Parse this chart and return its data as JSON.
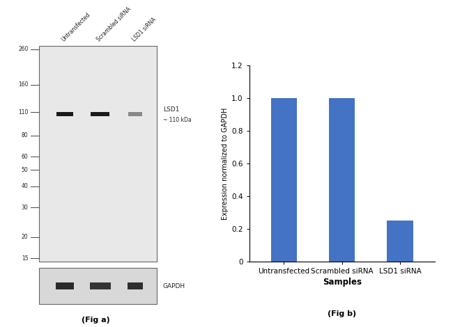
{
  "fig_width": 6.5,
  "fig_height": 4.7,
  "background_color": "#ffffff",
  "wb_panel": {
    "main_bg": "#e8e8e8",
    "gapdh_bg": "#d8d8d8",
    "border_color": "#666666",
    "lane_labels": [
      "Untransfected",
      "Scrambled siRNA",
      "LSD1 siRNA"
    ],
    "mw_markers": [
      260,
      160,
      110,
      80,
      60,
      50,
      40,
      30,
      20,
      15
    ],
    "band_colors": [
      "#1a1a1a",
      "#1a1a1a",
      "#888888"
    ],
    "gapdh_colors": [
      "#2a2a2a",
      "#333333",
      "#2e2e2e"
    ],
    "lsd1_label": "LSD1",
    "lsd1_sub": "~ 110 kDa",
    "gapdh_label": "GAPDH",
    "fig_label": "(Fig a)"
  },
  "bar_panel": {
    "categories": [
      "Untransfected",
      "Scrambled siRNA",
      "LSD1 siRNA"
    ],
    "values": [
      1.0,
      1.0,
      0.25
    ],
    "bar_color": "#4472c4",
    "bar_width": 0.45,
    "ylim": [
      0,
      1.2
    ],
    "yticks": [
      0,
      0.2,
      0.4,
      0.6,
      0.8,
      1.0,
      1.2
    ],
    "ytick_labels": [
      "0",
      "0.2",
      "0.4",
      "0.6",
      "0.8",
      "1.0",
      "1.2"
    ],
    "ylabel": "Expression normalized to GAPDH",
    "xlabel": "Samples",
    "fig_label": "(Fig b)"
  }
}
